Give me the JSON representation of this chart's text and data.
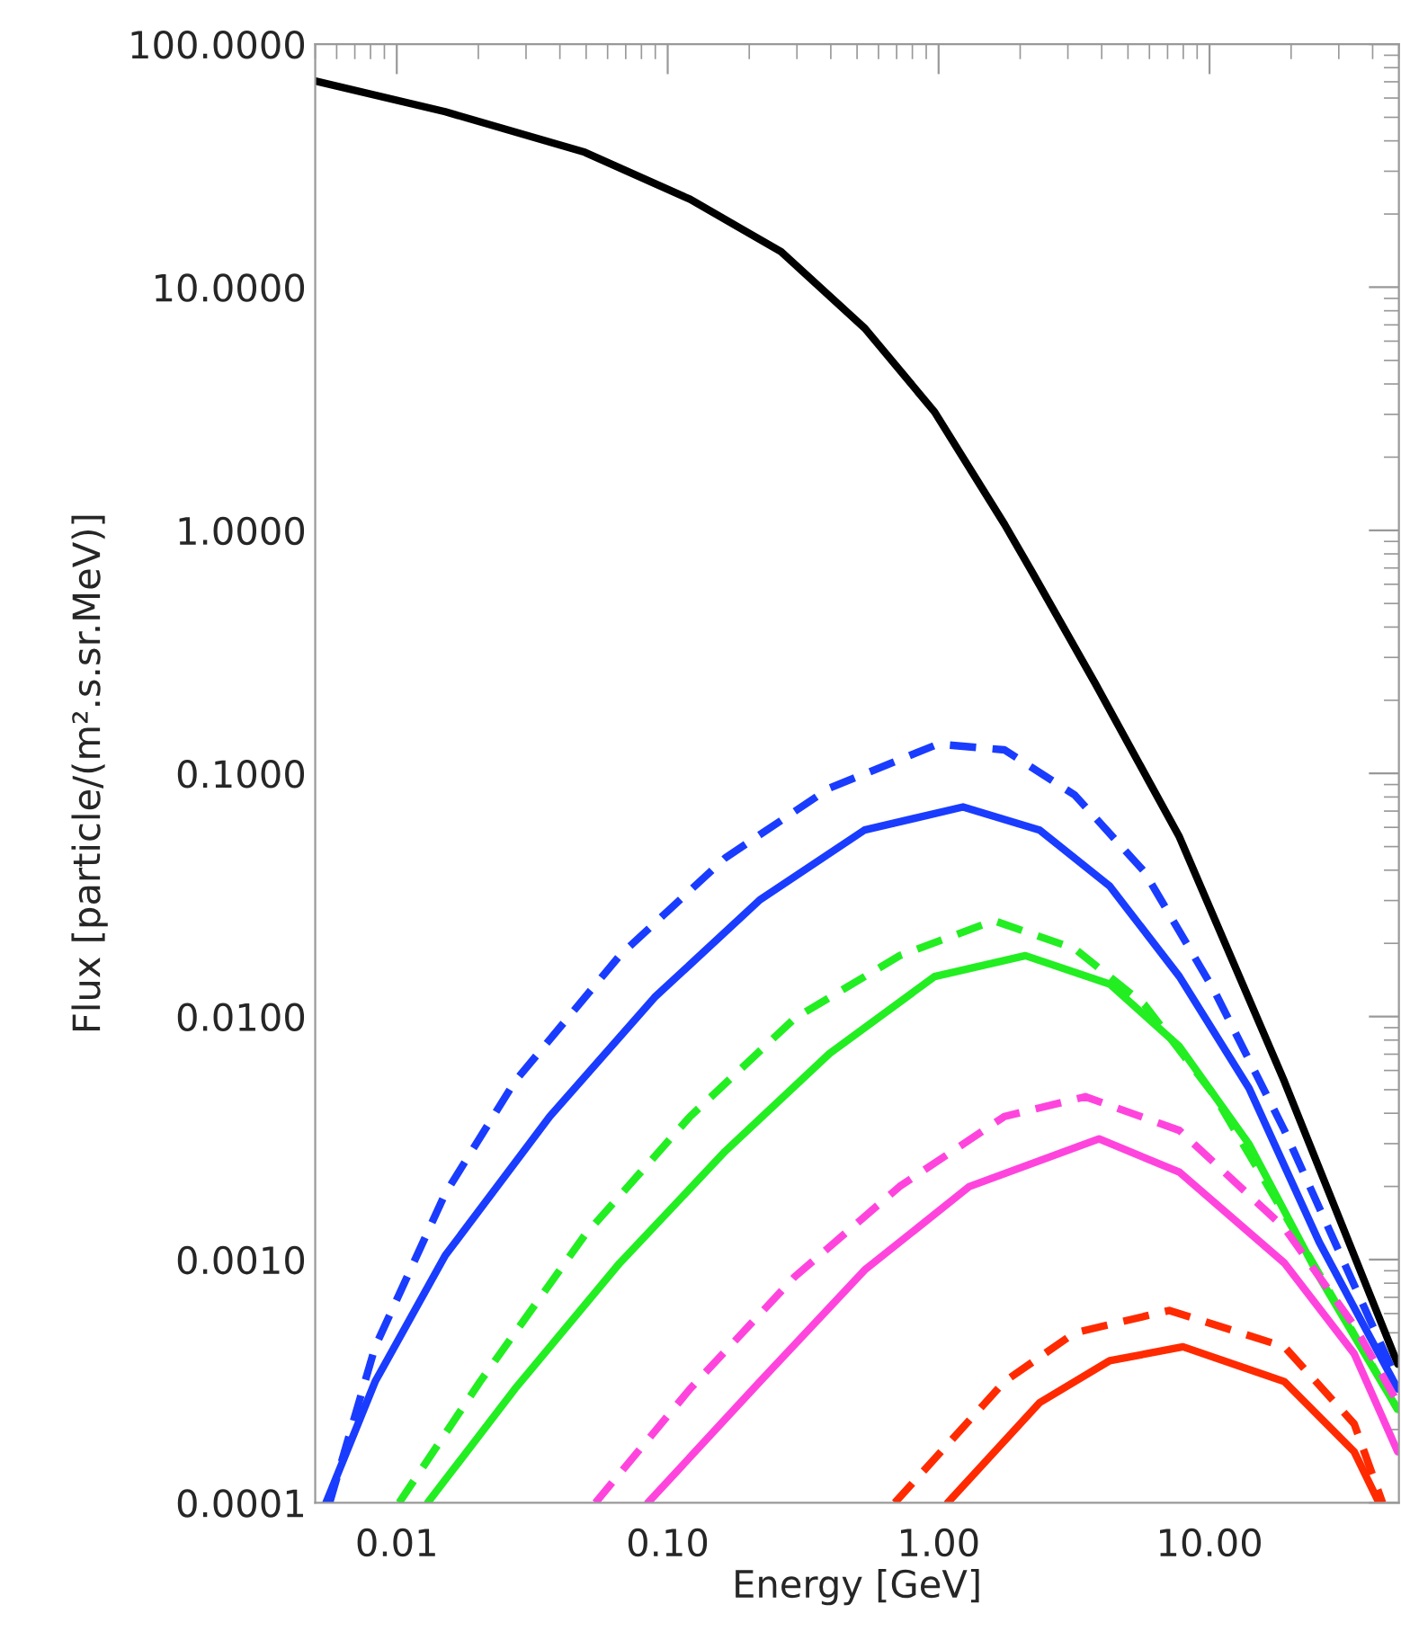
{
  "chart_data": {
    "type": "line",
    "xlabel": "Energy [GeV]",
    "ylabel": "Flux [particle/(m².s.sr.MeV)]",
    "log": "xy",
    "grid": false,
    "xlim": [
      0.005,
      50
    ],
    "ylim": [
      0.0001,
      100
    ],
    "xticks": [
      {
        "value": 0.01,
        "label": "0.01"
      },
      {
        "value": 0.1,
        "label": "0.10"
      },
      {
        "value": 1,
        "label": "1.00"
      },
      {
        "value": 10,
        "label": "10.00"
      }
    ],
    "yticks": [
      {
        "value": 0.0001,
        "label": "0.0001"
      },
      {
        "value": 0.001,
        "label": "0.0010"
      },
      {
        "value": 0.01,
        "label": "0.0100"
      },
      {
        "value": 0.1,
        "label": "0.1000"
      },
      {
        "value": 1,
        "label": "1.0000"
      },
      {
        "value": 10,
        "label": "10.0000"
      },
      {
        "value": 100,
        "label": "100.0000"
      }
    ],
    "series": [
      {
        "color": "#000000",
        "line_style": "solid",
        "x": [
          0.005,
          0.0151,
          0.0494,
          0.121,
          0.262,
          0.534,
          0.966,
          1.75,
          2.22,
          3.79,
          7.74,
          18.9,
          49.5
        ],
        "values": [
          70.5,
          52.7,
          35.9,
          23.0,
          14.0,
          6.78,
          3.07,
          1.06,
          0.67,
          0.234,
          0.0548,
          0.0054,
          0.000372
        ]
      },
      {
        "color": "#1a3cff",
        "line_style": "dashed",
        "x": [
          0.00565,
          0.00832,
          0.0151,
          0.0273,
          0.0665,
          0.163,
          0.396,
          0.995,
          1.75,
          3.18,
          5.75,
          10.4,
          18.9,
          49.5
        ],
        "values": [
          0.0001,
          0.000438,
          0.00187,
          0.00541,
          0.0178,
          0.0449,
          0.0871,
          0.132,
          0.125,
          0.0815,
          0.0394,
          0.0128,
          0.0034,
          0.000315
        ]
      },
      {
        "color": "#1a3cff",
        "line_style": "solid",
        "x": [
          0.00548,
          0.00832,
          0.0151,
          0.0367,
          0.0895,
          0.219,
          0.533,
          1.23,
          2.36,
          4.28,
          7.74,
          14.0,
          25.4,
          49.5
        ],
        "values": [
          0.0001,
          0.000315,
          0.00104,
          0.00388,
          0.012,
          0.0302,
          0.0585,
          0.0728,
          0.0585,
          0.0344,
          0.0146,
          0.00506,
          0.00118,
          0.000294
        ]
      },
      {
        "color": "#22ee22",
        "line_style": "dashed",
        "x": [
          0.0102,
          0.0203,
          0.0494,
          0.121,
          0.294,
          0.718,
          1.6,
          3.18,
          5.75,
          10.4,
          18.9,
          49.5
        ],
        "values": [
          0.0001,
          0.000315,
          0.00126,
          0.00388,
          0.00982,
          0.0178,
          0.0248,
          0.019,
          0.0112,
          0.00474,
          0.00154,
          0.000242
        ]
      },
      {
        "color": "#22ee22",
        "line_style": "solid",
        "x": [
          0.013,
          0.0273,
          0.0665,
          0.163,
          0.396,
          0.966,
          2.09,
          4.28,
          7.74,
          14.0,
          25.4,
          49.5
        ],
        "values": [
          0.0001,
          0.000294,
          0.000968,
          0.00279,
          0.00705,
          0.0146,
          0.0178,
          0.0136,
          0.00753,
          0.00298,
          0.000849,
          0.000242
        ]
      },
      {
        "color": "#ff44dd",
        "line_style": "dashed",
        "x": [
          0.0541,
          0.121,
          0.294,
          0.718,
          1.75,
          3.48,
          7.74,
          18.9,
          34.2,
          49.5
        ],
        "values": [
          0.0001,
          0.000294,
          0.000849,
          0.002,
          0.00388,
          0.00468,
          0.0034,
          0.00135,
          0.000535,
          0.000258
        ]
      },
      {
        "color": "#ff44dd",
        "line_style": "solid",
        "x": [
          0.0845,
          0.219,
          0.533,
          1.3,
          3.91,
          7.74,
          18.9,
          34.2,
          49.5
        ],
        "values": [
          0.0001,
          0.000315,
          0.000906,
          0.002,
          0.00314,
          0.00229,
          0.000968,
          0.00041,
          0.000162
        ]
      },
      {
        "color": "#ff2a00",
        "line_style": "dashed",
        "x": [
          0.689,
          1.75,
          3.18,
          7.1,
          18.9,
          34.2,
          43.5
        ],
        "values": [
          0.0001,
          0.000315,
          0.0005,
          0.000618,
          0.000438,
          0.000211,
          0.0001
        ]
      },
      {
        "color": "#ff2a00",
        "line_style": "solid",
        "x": [
          1.08,
          2.36,
          4.28,
          7.98,
          18.9,
          34.2,
          42.2
        ],
        "values": [
          0.0001,
          0.000258,
          0.000384,
          0.000438,
          0.000315,
          0.000162,
          0.0001
        ]
      }
    ]
  }
}
